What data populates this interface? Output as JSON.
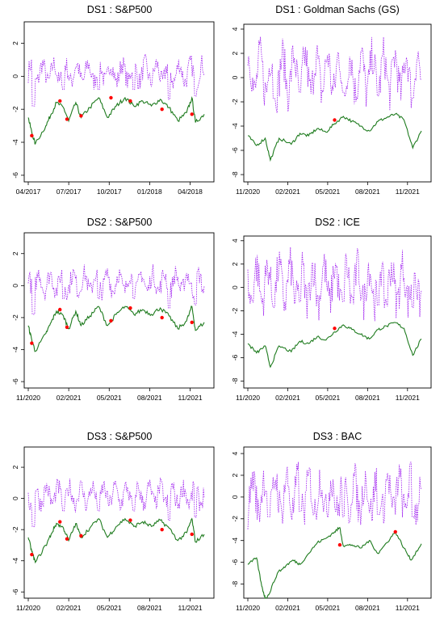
{
  "colors": {
    "upper": "#A020F0",
    "lower": "#1E7B1E",
    "marker": "#FF0000"
  },
  "chart_data": [
    {
      "type": "line",
      "title": "DS1 : S&P500",
      "xticks": [
        "04/2017",
        "07/2017",
        "10/2017",
        "01/2018",
        "04/2018"
      ],
      "yticks": [
        -6,
        -4,
        -2,
        0,
        2
      ],
      "ylim": [
        -6.4,
        3.3
      ],
      "upper": {
        "base": 0.2,
        "amp": 1.0,
        "spikes": [
          [
            0.03,
            -2.0
          ],
          [
            0.2,
            -1.0
          ],
          [
            0.4,
            -1.0
          ],
          [
            0.6,
            -1.0
          ],
          [
            0.8,
            -1.6
          ],
          [
            0.95,
            -1.4
          ]
        ],
        "style": "dotted"
      },
      "lower": [
        [
          0,
          -2.5
        ],
        [
          0.02,
          -3.4
        ],
        [
          0.04,
          -4.1
        ],
        [
          0.1,
          -3.0
        ],
        [
          0.13,
          -2.3
        ],
        [
          0.16,
          -1.6
        ],
        [
          0.2,
          -1.9
        ],
        [
          0.23,
          -2.7
        ],
        [
          0.27,
          -1.6
        ],
        [
          0.3,
          -2.5
        ],
        [
          0.35,
          -1.9
        ],
        [
          0.4,
          -1.3
        ],
        [
          0.45,
          -2.5
        ],
        [
          0.5,
          -1.8
        ],
        [
          0.55,
          -1.3
        ],
        [
          0.6,
          -1.8
        ],
        [
          0.65,
          -1.5
        ],
        [
          0.7,
          -1.8
        ],
        [
          0.75,
          -1.4
        ],
        [
          0.8,
          -1.9
        ],
        [
          0.85,
          -2.7
        ],
        [
          0.9,
          -2.2
        ],
        [
          0.93,
          -1.3
        ],
        [
          0.95,
          -2.8
        ],
        [
          1.0,
          -2.3
        ]
      ],
      "markers": [
        [
          0.02,
          -3.6
        ],
        [
          0.18,
          -1.5
        ],
        [
          0.22,
          -2.6
        ],
        [
          0.3,
          -2.4
        ],
        [
          0.47,
          -1.3
        ],
        [
          0.58,
          -1.5
        ],
        [
          0.76,
          -2.0
        ],
        [
          0.93,
          -2.3
        ]
      ]
    },
    {
      "type": "line",
      "title": "DS1 : Goldman Sachs (GS)",
      "xticks": [
        "11/2020",
        "02/2021",
        "05/2021",
        "08/2021",
        "11/2021"
      ],
      "yticks": [
        -8,
        -6,
        -4,
        -2,
        0,
        2,
        4
      ],
      "ylim": [
        -8.6,
        4.4
      ],
      "upper": {
        "base": 0.3,
        "amp": 2.8,
        "spikes": [
          [
            0.15,
            -2.0
          ],
          [
            0.3,
            -1.5
          ],
          [
            0.55,
            -1.5
          ],
          [
            0.75,
            -1.8
          ],
          [
            0.95,
            -2.0
          ]
        ],
        "style": "dotted"
      },
      "lower": [
        [
          0,
          -4.8
        ],
        [
          0.05,
          -5.6
        ],
        [
          0.1,
          -5.0
        ],
        [
          0.13,
          -6.8
        ],
        [
          0.18,
          -5.0
        ],
        [
          0.25,
          -5.5
        ],
        [
          0.3,
          -4.6
        ],
        [
          0.35,
          -4.8
        ],
        [
          0.4,
          -4.2
        ],
        [
          0.45,
          -4.5
        ],
        [
          0.5,
          -3.8
        ],
        [
          0.55,
          -3.2
        ],
        [
          0.6,
          -3.6
        ],
        [
          0.65,
          -4.0
        ],
        [
          0.7,
          -4.4
        ],
        [
          0.75,
          -3.6
        ],
        [
          0.8,
          -3.3
        ],
        [
          0.85,
          -3.0
        ],
        [
          0.9,
          -3.5
        ],
        [
          0.95,
          -5.8
        ],
        [
          1.0,
          -4.4
        ]
      ],
      "markers": [
        [
          0.5,
          -3.5
        ]
      ]
    },
    {
      "type": "line",
      "title": "DS2 : S&P500",
      "xticks": [
        "11/2020",
        "02/2021",
        "05/2021",
        "08/2021",
        "11/2021"
      ],
      "yticks": [
        -6,
        -4,
        -2,
        0,
        2
      ],
      "ylim": [
        -6.4,
        3.3
      ],
      "upper": {
        "base": 0.2,
        "amp": 1.0,
        "spikes": [
          [
            0.03,
            -2.0
          ],
          [
            0.2,
            -1.0
          ],
          [
            0.4,
            -1.0
          ],
          [
            0.6,
            -1.0
          ],
          [
            0.8,
            -1.6
          ],
          [
            0.95,
            -1.4
          ]
        ],
        "style": "dotted"
      },
      "lower": [
        [
          0,
          -2.5
        ],
        [
          0.02,
          -3.4
        ],
        [
          0.04,
          -4.1
        ],
        [
          0.1,
          -3.0
        ],
        [
          0.13,
          -2.3
        ],
        [
          0.16,
          -1.6
        ],
        [
          0.2,
          -1.9
        ],
        [
          0.23,
          -2.7
        ],
        [
          0.27,
          -1.6
        ],
        [
          0.3,
          -2.5
        ],
        [
          0.35,
          -1.9
        ],
        [
          0.4,
          -1.3
        ],
        [
          0.45,
          -2.5
        ],
        [
          0.5,
          -1.8
        ],
        [
          0.55,
          -1.3
        ],
        [
          0.6,
          -1.8
        ],
        [
          0.65,
          -1.5
        ],
        [
          0.7,
          -1.8
        ],
        [
          0.75,
          -1.4
        ],
        [
          0.8,
          -1.9
        ],
        [
          0.85,
          -2.7
        ],
        [
          0.9,
          -2.2
        ],
        [
          0.93,
          -1.3
        ],
        [
          0.95,
          -2.8
        ],
        [
          1.0,
          -2.3
        ]
      ],
      "markers": [
        [
          0.02,
          -3.6
        ],
        [
          0.18,
          -1.5
        ],
        [
          0.22,
          -2.6
        ],
        [
          0.47,
          -2.2
        ],
        [
          0.58,
          -1.4
        ],
        [
          0.76,
          -2.0
        ],
        [
          0.93,
          -2.3
        ]
      ]
    },
    {
      "type": "line",
      "title": "DS2 : ICE",
      "xticks": [
        "11/2020",
        "02/2021",
        "05/2021",
        "08/2021",
        "11/2021"
      ],
      "yticks": [
        -8,
        -6,
        -4,
        -2,
        0,
        2,
        4
      ],
      "ylim": [
        -8.6,
        4.4
      ],
      "upper": {
        "base": 0.3,
        "amp": 2.8,
        "spikes": [
          [
            0.15,
            -2.0
          ],
          [
            0.3,
            -1.5
          ],
          [
            0.55,
            -1.5
          ],
          [
            0.75,
            -1.8
          ],
          [
            0.95,
            -2.0
          ]
        ],
        "style": "dotted"
      },
      "lower": [
        [
          0,
          -4.8
        ],
        [
          0.05,
          -5.6
        ],
        [
          0.1,
          -5.0
        ],
        [
          0.13,
          -6.8
        ],
        [
          0.18,
          -5.0
        ],
        [
          0.25,
          -5.5
        ],
        [
          0.3,
          -4.6
        ],
        [
          0.35,
          -4.8
        ],
        [
          0.4,
          -4.2
        ],
        [
          0.45,
          -4.5
        ],
        [
          0.5,
          -3.8
        ],
        [
          0.55,
          -3.2
        ],
        [
          0.6,
          -3.6
        ],
        [
          0.65,
          -4.0
        ],
        [
          0.7,
          -4.4
        ],
        [
          0.75,
          -3.6
        ],
        [
          0.8,
          -3.3
        ],
        [
          0.85,
          -3.0
        ],
        [
          0.9,
          -3.5
        ],
        [
          0.95,
          -5.8
        ],
        [
          1.0,
          -4.4
        ]
      ],
      "markers": [
        [
          0.5,
          -3.5
        ]
      ]
    },
    {
      "type": "line",
      "title": "DS3 : S&P500",
      "xticks": [
        "11/2020",
        "02/2021",
        "05/2021",
        "08/2021",
        "11/2021"
      ],
      "yticks": [
        -6,
        -4,
        -2,
        0,
        2
      ],
      "ylim": [
        -6.4,
        3.3
      ],
      "upper": {
        "base": 0.2,
        "amp": 1.0,
        "spikes": [
          [
            0.03,
            -2.0
          ],
          [
            0.2,
            -1.0
          ],
          [
            0.4,
            -1.0
          ],
          [
            0.6,
            -1.0
          ],
          [
            0.8,
            -1.6
          ],
          [
            0.95,
            -1.4
          ]
        ],
        "style": "dotted"
      },
      "lower": [
        [
          0,
          -2.5
        ],
        [
          0.02,
          -3.4
        ],
        [
          0.04,
          -4.1
        ],
        [
          0.1,
          -3.0
        ],
        [
          0.13,
          -2.3
        ],
        [
          0.16,
          -1.6
        ],
        [
          0.2,
          -1.9
        ],
        [
          0.23,
          -2.7
        ],
        [
          0.27,
          -1.6
        ],
        [
          0.3,
          -2.5
        ],
        [
          0.35,
          -1.9
        ],
        [
          0.4,
          -1.3
        ],
        [
          0.45,
          -2.5
        ],
        [
          0.5,
          -1.8
        ],
        [
          0.55,
          -1.3
        ],
        [
          0.6,
          -1.8
        ],
        [
          0.65,
          -1.5
        ],
        [
          0.7,
          -1.8
        ],
        [
          0.75,
          -1.4
        ],
        [
          0.8,
          -1.9
        ],
        [
          0.85,
          -2.7
        ],
        [
          0.9,
          -2.2
        ],
        [
          0.93,
          -1.3
        ],
        [
          0.95,
          -2.8
        ],
        [
          1.0,
          -2.3
        ]
      ],
      "markers": [
        [
          0.02,
          -3.6
        ],
        [
          0.18,
          -1.5
        ],
        [
          0.22,
          -2.6
        ],
        [
          0.3,
          -2.4
        ],
        [
          0.58,
          -1.4
        ],
        [
          0.76,
          -2.0
        ],
        [
          0.93,
          -2.3
        ]
      ]
    },
    {
      "type": "line",
      "title": "DS3 : BAC",
      "xticks": [
        "11/2020",
        "02/2021",
        "05/2021",
        "08/2021",
        "11/2021"
      ],
      "yticks": [
        -8,
        -6,
        -4,
        -2,
        0,
        2,
        4
      ],
      "ylim": [
        -9.3,
        4.6
      ],
      "upper": {
        "base": 0.2,
        "amp": 2.9,
        "spikes": [
          [
            0.12,
            -2.0
          ],
          [
            0.3,
            -1.5
          ],
          [
            0.55,
            -2.0
          ],
          [
            0.75,
            -1.8
          ],
          [
            0.95,
            -2.0
          ]
        ],
        "style": "dotted"
      },
      "lower": [
        [
          0,
          -6.2
        ],
        [
          0.05,
          -5.6
        ],
        [
          0.08,
          -8.2
        ],
        [
          0.1,
          -9.3
        ],
        [
          0.12,
          -9.0
        ],
        [
          0.17,
          -7.0
        ],
        [
          0.22,
          -6.3
        ],
        [
          0.26,
          -5.8
        ],
        [
          0.3,
          -6.2
        ],
        [
          0.35,
          -5.2
        ],
        [
          0.4,
          -4.2
        ],
        [
          0.45,
          -3.8
        ],
        [
          0.5,
          -3.2
        ],
        [
          0.53,
          -2.8
        ],
        [
          0.55,
          -4.5
        ],
        [
          0.6,
          -4.4
        ],
        [
          0.65,
          -4.7
        ],
        [
          0.7,
          -4.0
        ],
        [
          0.75,
          -5.2
        ],
        [
          0.8,
          -4.2
        ],
        [
          0.85,
          -3.2
        ],
        [
          0.9,
          -4.7
        ],
        [
          0.94,
          -5.8
        ],
        [
          1.0,
          -4.3
        ]
      ],
      "markers": [
        [
          0.53,
          -4.4
        ],
        [
          0.85,
          -3.2
        ]
      ]
    }
  ]
}
